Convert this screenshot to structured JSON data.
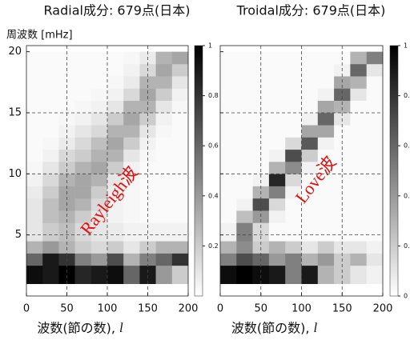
{
  "chart_data": [
    {
      "type": "heatmap",
      "title": "Radial成分: 679点(日本)",
      "ylabel": "周波数 [mHz]",
      "xlabel": "波数(節の数),",
      "xlabel_var": "l",
      "annotation": "Rayleigh波",
      "xlim": [
        0,
        200
      ],
      "xticks": [
        0,
        50,
        100,
        150,
        200
      ],
      "ylim": [
        0,
        20.5
      ],
      "yticks": [
        5,
        10,
        15,
        20
      ],
      "grid": true,
      "ytick_labels": true,
      "x_bins": [
        0,
        20,
        40,
        60,
        80,
        100,
        120,
        140,
        160,
        180,
        200
      ],
      "y_bins": [
        1,
        2.5,
        3.5,
        4.5,
        6,
        7,
        8,
        9,
        10,
        11,
        12,
        13,
        14,
        15,
        16,
        17,
        18,
        19,
        20
      ],
      "z": [
        [
          0.95,
          0.9,
          1,
          0.85,
          0.9,
          0.95,
          0.6,
          0.9,
          0.4,
          0.2
        ],
        [
          0.6,
          0.9,
          0.8,
          0.5,
          0.4,
          0.7,
          0.3,
          0.5,
          0.6,
          0.8
        ],
        [
          0.3,
          0.4,
          0.3,
          0.2,
          0.15,
          0.2,
          0.1,
          0.2,
          0.3,
          0.3
        ],
        [
          0.1,
          0.2,
          0.25,
          0.15,
          0.1,
          0.08,
          0.05,
          0.05,
          0.05,
          0.05
        ],
        [
          0.1,
          0.25,
          0.3,
          0.2,
          0.1,
          0.05,
          0.03,
          0.02,
          0.02,
          0.02
        ],
        [
          0.1,
          0.25,
          0.35,
          0.3,
          0.15,
          0.05,
          0.03,
          0.02,
          0.02,
          0.02
        ],
        [
          0.08,
          0.2,
          0.35,
          0.35,
          0.2,
          0.08,
          0.03,
          0.02,
          0.02,
          0.02
        ],
        [
          0.05,
          0.15,
          0.3,
          0.35,
          0.3,
          0.1,
          0.04,
          0.02,
          0.02,
          0.02
        ],
        [
          0.03,
          0.1,
          0.2,
          0.3,
          0.35,
          0.2,
          0.05,
          0.02,
          0.02,
          0.02
        ],
        [
          0.02,
          0.05,
          0.15,
          0.2,
          0.3,
          0.3,
          0.1,
          0.03,
          0.02,
          0.02
        ],
        [
          0.02,
          0.03,
          0.08,
          0.15,
          0.25,
          0.35,
          0.2,
          0.05,
          0.02,
          0.02
        ],
        [
          0.02,
          0.02,
          0.05,
          0.1,
          0.15,
          0.3,
          0.3,
          0.1,
          0.03,
          0.02
        ],
        [
          0.02,
          0.02,
          0.03,
          0.05,
          0.1,
          0.2,
          0.35,
          0.2,
          0.05,
          0.02
        ],
        [
          0.02,
          0.02,
          0.02,
          0.03,
          0.05,
          0.1,
          0.3,
          0.3,
          0.1,
          0.03
        ],
        [
          0.02,
          0.02,
          0.02,
          0.02,
          0.03,
          0.05,
          0.15,
          0.35,
          0.2,
          0.05
        ],
        [
          0.02,
          0.02,
          0.02,
          0.02,
          0.02,
          0.03,
          0.08,
          0.3,
          0.3,
          0.1
        ],
        [
          0.02,
          0.02,
          0.02,
          0.02,
          0.02,
          0.02,
          0.05,
          0.15,
          0.35,
          0.2
        ],
        [
          0.02,
          0.02,
          0.02,
          0.02,
          0.02,
          0.02,
          0.03,
          0.08,
          0.3,
          0.35
        ]
      ],
      "colorbar": {
        "lim": [
          0,
          1
        ],
        "ticks": [
          0.2,
          0.4,
          0.6,
          0.8,
          1
        ]
      }
    },
    {
      "type": "heatmap",
      "title": "Troidal成分: 679点(日本)",
      "xlabel": "波数(節の数),",
      "xlabel_var": "l",
      "annotation": "Love波",
      "xlim": [
        0,
        200
      ],
      "xticks": [
        0,
        50,
        100,
        150,
        200
      ],
      "ylim": [
        0,
        20.5
      ],
      "yticks": [
        5,
        10,
        15,
        20
      ],
      "grid": true,
      "ytick_labels": false,
      "x_bins": [
        0,
        20,
        40,
        60,
        80,
        100,
        120,
        140,
        160,
        180,
        200
      ],
      "y_bins": [
        1,
        2.5,
        3.5,
        4.5,
        6,
        7,
        8,
        9,
        10,
        11,
        12,
        13,
        14,
        15,
        16,
        17,
        18,
        19,
        20
      ],
      "z": [
        [
          0.95,
          1,
          0.95,
          0.9,
          0.5,
          0.9,
          0.3,
          0.2,
          0.1,
          0.05
        ],
        [
          0.5,
          0.7,
          0.6,
          0.4,
          0.5,
          0.3,
          0.4,
          0.2,
          0.3,
          0.1
        ],
        [
          0.3,
          0.45,
          0.2,
          0.3,
          0.2,
          0.1,
          0.2,
          0.1,
          0.1,
          0.05
        ],
        [
          0.05,
          0.5,
          0.15,
          0.02,
          0.02,
          0.02,
          0.02,
          0.02,
          0.02,
          0.02
        ],
        [
          0.02,
          0.25,
          0.4,
          0.05,
          0.02,
          0.02,
          0.02,
          0.02,
          0.02,
          0.02
        ],
        [
          0.02,
          0.05,
          0.7,
          0.15,
          0.02,
          0.02,
          0.02,
          0.02,
          0.02,
          0.02
        ],
        [
          0.02,
          0.02,
          0.3,
          0.5,
          0.05,
          0.02,
          0.02,
          0.02,
          0.02,
          0.02
        ],
        [
          0.02,
          0.02,
          0.05,
          0.85,
          0.15,
          0.02,
          0.02,
          0.02,
          0.02,
          0.02
        ],
        [
          0.02,
          0.02,
          0.02,
          0.3,
          0.45,
          0.05,
          0.02,
          0.02,
          0.02,
          0.02
        ],
        [
          0.02,
          0.02,
          0.02,
          0.05,
          0.7,
          0.2,
          0.02,
          0.02,
          0.02,
          0.02
        ],
        [
          0.02,
          0.02,
          0.02,
          0.02,
          0.15,
          0.65,
          0.05,
          0.02,
          0.02,
          0.02
        ],
        [
          0.02,
          0.02,
          0.02,
          0.02,
          0.02,
          0.35,
          0.35,
          0.02,
          0.02,
          0.02
        ],
        [
          0.02,
          0.02,
          0.02,
          0.02,
          0.02,
          0.05,
          0.6,
          0.1,
          0.02,
          0.02
        ],
        [
          0.02,
          0.02,
          0.02,
          0.02,
          0.02,
          0.02,
          0.35,
          0.3,
          0.02,
          0.02
        ],
        [
          0.02,
          0.02,
          0.02,
          0.02,
          0.02,
          0.02,
          0.05,
          0.6,
          0.1,
          0.02
        ],
        [
          0.02,
          0.02,
          0.02,
          0.02,
          0.02,
          0.02,
          0.02,
          0.35,
          0.3,
          0.02
        ],
        [
          0.02,
          0.02,
          0.02,
          0.02,
          0.02,
          0.02,
          0.02,
          0.05,
          0.6,
          0.1
        ],
        [
          0.02,
          0.02,
          0.02,
          0.02,
          0.02,
          0.02,
          0.02,
          0.02,
          0.3,
          0.5
        ]
      ],
      "colorbar": {
        "lim": [
          0,
          1
        ],
        "ticks": [
          0,
          0.2,
          0.4,
          0.6,
          0.8,
          1
        ]
      }
    }
  ]
}
